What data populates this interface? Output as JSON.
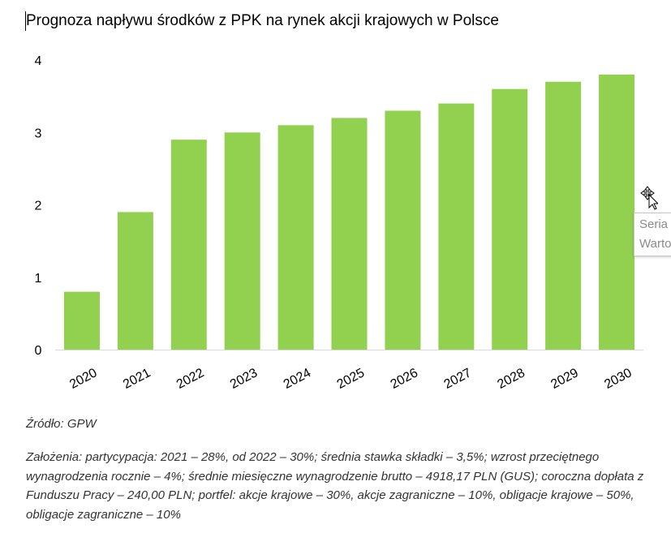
{
  "title": "Prognoza napływu środków z PPK na rynek akcji krajowych w Polsce",
  "source": "Źródło: GPW",
  "notes": "Założenia: partycypacja: 2021 – 28%, od 2022 – 30%; średnia stawka składki – 3,5%; wzrost przeciętnego wynagrodzenia rocznie – 4%; średnie miesięczne wynagrodzenie brutto – 4918,17 PLN (GUS); coroczna dopłata z Funduszu Pracy – 240,00 PLN; portfel: akcje krajowe – 30%, akcje zagraniczne – 10%, obligacje krajowe – 50%, obligacje zagraniczne – 10%",
  "tooltip": {
    "line1": "Seria",
    "line2": "Warto"
  },
  "chart_data": {
    "type": "bar",
    "title": "Prognoza napływu środków z PPK na rynek akcji krajowych w Polsce",
    "categories": [
      "2020",
      "2021",
      "2022",
      "2023",
      "2024",
      "2025",
      "2026",
      "2027",
      "2028",
      "2029",
      "2030"
    ],
    "values": [
      0.8,
      1.9,
      2.9,
      3.0,
      3.1,
      3.2,
      3.3,
      3.4,
      3.6,
      3.7,
      3.8
    ],
    "ylim": [
      0,
      4
    ],
    "yticks": [
      0,
      1,
      2,
      3,
      4
    ],
    "grid": false,
    "bar_color": "#92d050",
    "xlabel": "",
    "ylabel": ""
  }
}
